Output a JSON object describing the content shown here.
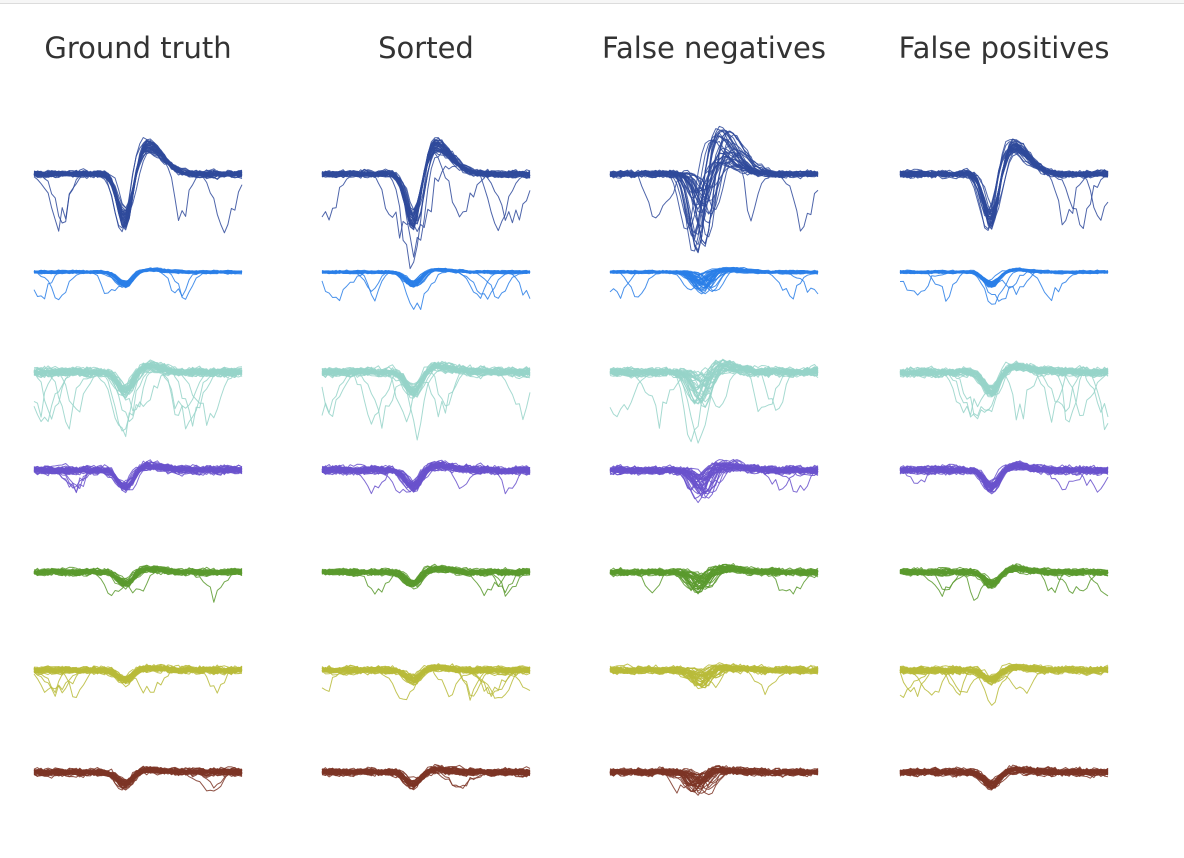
{
  "chart_data": {
    "type": "line",
    "panels": [
      {
        "title": "Ground truth",
        "id": "ground-truth",
        "mode": "clean"
      },
      {
        "title": "Sorted",
        "id": "sorted",
        "mode": "clean"
      },
      {
        "title": "False negatives",
        "id": "false-negatives",
        "mode": "messy"
      },
      {
        "title": "False positives",
        "id": "false-positives",
        "mode": "clean"
      }
    ],
    "x": {
      "samples": 60,
      "spike_sample": 26
    },
    "channels": [
      {
        "name": "channel-1",
        "color": "#2f4a9b",
        "trough": -95,
        "peak": 48,
        "noise": 9,
        "dropouts": 0.1,
        "drop_depth": 90
      },
      {
        "name": "channel-2",
        "color": "#2a7fe8",
        "trough": -22,
        "peak": 4,
        "noise": 4,
        "dropouts": 0.14,
        "drop_depth": 45
      },
      {
        "name": "channel-3",
        "color": "#96d4c9",
        "trough": -35,
        "peak": 10,
        "noise": 12,
        "dropouts": 0.3,
        "drop_depth": 85
      },
      {
        "name": "channel-4",
        "color": "#6a52cc",
        "trough": -32,
        "peak": 8,
        "noise": 11,
        "dropouts": 0.06,
        "drop_depth": 35
      },
      {
        "name": "channel-5",
        "color": "#5a9a2e",
        "trough": -22,
        "peak": 6,
        "noise": 9,
        "dropouts": 0.08,
        "drop_depth": 40
      },
      {
        "name": "channel-6",
        "color": "#b8bb3a",
        "trough": -18,
        "peak": 4,
        "noise": 10,
        "dropouts": 0.16,
        "drop_depth": 45
      },
      {
        "name": "channel-7",
        "color": "#7d3526",
        "trough": -22,
        "peak": 4,
        "noise": 10,
        "dropouts": 0.05,
        "drop_depth": 30
      }
    ],
    "traces_per_channel": 36,
    "grid": false,
    "legend": "none"
  }
}
